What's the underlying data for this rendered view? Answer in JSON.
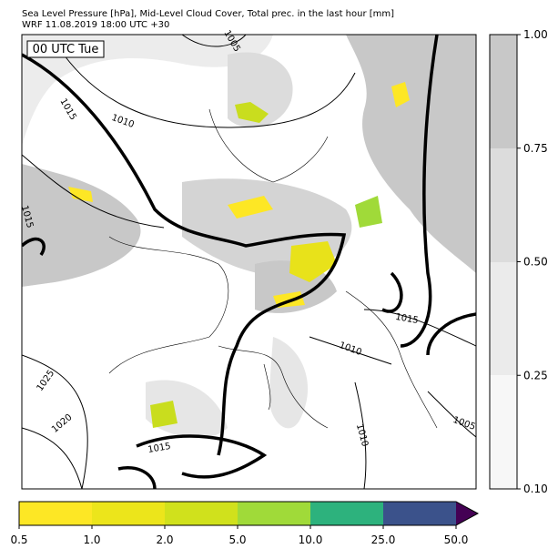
{
  "header": {
    "title": "Sea Level Pressure [hPa], Mid-Level Cloud Cover, Total prec. in the last hour [mm]",
    "subtitle": "WRF 11.08.2019 18:00 UTC +30"
  },
  "map": {
    "time_label": "00 UTC Tue",
    "contour_labels": [
      "1005",
      "1015",
      "1010",
      "1015",
      "1025",
      "1020",
      "1015",
      "1015",
      "1010",
      "1010",
      "1005"
    ]
  },
  "cloud_colorbar": {
    "ticks": [
      "0.10",
      "0.25",
      "0.50",
      "0.75",
      "1.00"
    ]
  },
  "precip_colorbar": {
    "ticks": [
      "0.5",
      "1.0",
      "2.0",
      "5.0",
      "10.0",
      "25.0",
      "50.0"
    ]
  }
}
